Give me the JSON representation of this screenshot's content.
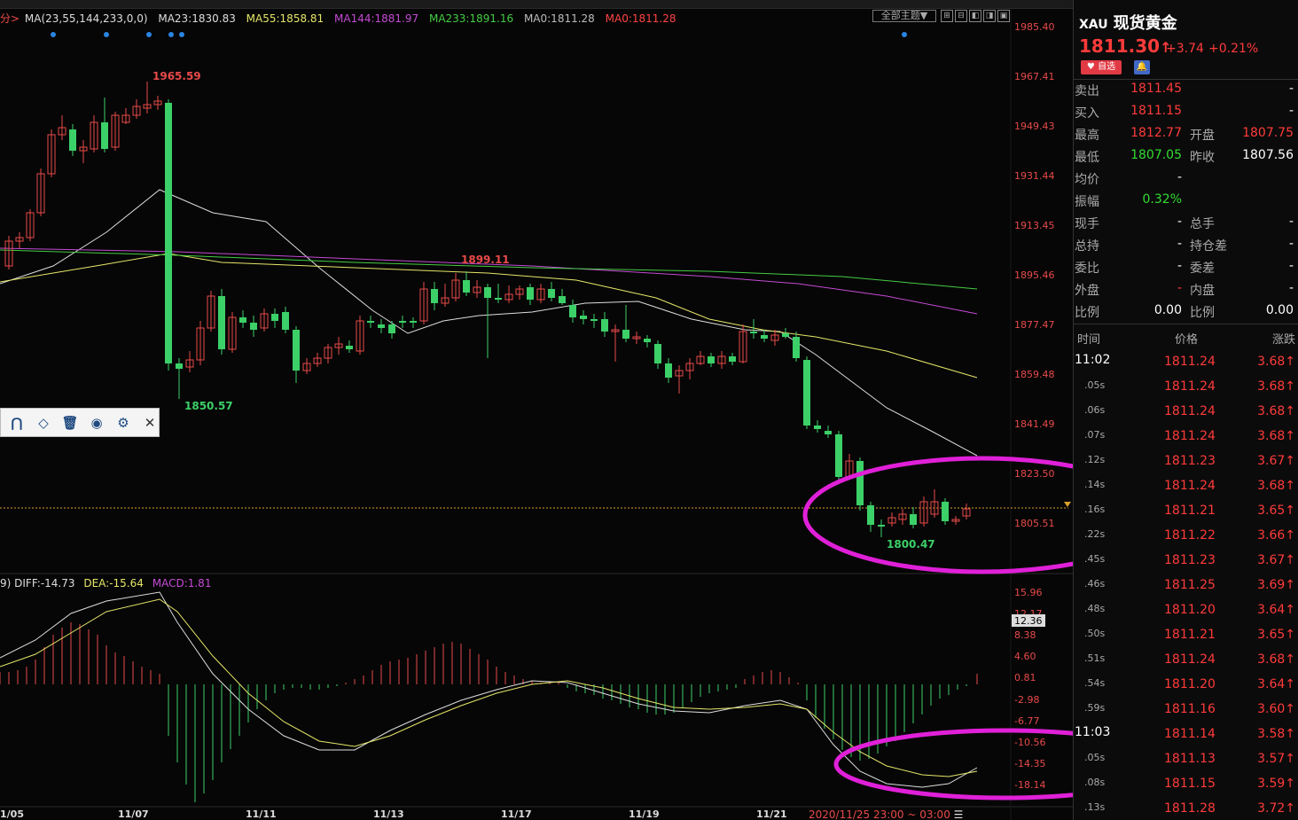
{
  "toolbar": {
    "theme_label": "全部主题▼",
    "icons": [
      "layout-1",
      "layout-2",
      "layout-3",
      "layout-4",
      "maximize"
    ]
  },
  "ma_legend": {
    "prefix": "分>",
    "items": [
      {
        "text": "MA(23,55,144,233,0,0)",
        "color": "#dddddd"
      },
      {
        "text": "MA23:1830.83",
        "color": "#dddddd"
      },
      {
        "text": "MA55:1858.81",
        "color": "#e6e66a"
      },
      {
        "text": "MA144:1881.97",
        "color": "#c44ad4"
      },
      {
        "text": "MA233:1891.16",
        "color": "#44cc44"
      },
      {
        "text": "MA0:1811.28",
        "color": "#bbbbbb"
      },
      {
        "text": "MA0:1811.28",
        "color": "#ff4444"
      }
    ]
  },
  "price_axis": [
    "1985.40",
    "1967.41",
    "1949.43",
    "1931.44",
    "1913.45",
    "1895.46",
    "1877.47",
    "1859.48",
    "1841.49",
    "1823.50",
    "1805.51"
  ],
  "annotations": {
    "high": "1965.59",
    "low1": "1850.57",
    "mid": "1899.11",
    "low2": "1800.47"
  },
  "macd_legend": [
    {
      "text": "9) DIFF:-14.73",
      "color": "#dddddd"
    },
    {
      "text": "DEA:-15.64",
      "color": "#e6e66a"
    },
    {
      "text": "MACD:1.81",
      "color": "#c44ad4"
    }
  ],
  "macd_axis": [
    "15.96",
    "12.17",
    "8.38",
    "4.60",
    "0.81",
    "-2.98",
    "-6.77",
    "-10.56",
    "-14.35",
    "-18.14"
  ],
  "macd_current": "12.36",
  "date_axis": [
    "1/05",
    "11/07",
    "11/11",
    "11/13",
    "11/17",
    "11/19",
    "11/21"
  ],
  "range_text": "2020/11/25 23:00 ~ 03:00",
  "range_menu": "☰",
  "toolbox_icons": [
    "magnet-icon",
    "eraser-icon",
    "trash-icon",
    "eye-icon",
    "gear-icon",
    "close-icon"
  ],
  "quote": {
    "code": "XAU",
    "name": "现货黄金",
    "price": "1811.30",
    "arrow": "↑",
    "change": "+3.74",
    "pct": "+0.21%",
    "fav": "♥ 自选",
    "bell": "🔔",
    "rows": [
      {
        "l1": "卖出",
        "v1": "1811.45",
        "l2": "",
        "v2": "-"
      },
      {
        "l1": "买入",
        "v1": "1811.15",
        "l2": "",
        "v2": "-"
      },
      {
        "l1": "最高",
        "v1": "1812.77",
        "l2": "开盘",
        "v2": "1807.75"
      },
      {
        "l1": "最低",
        "v1": "1807.05",
        "l2": "昨收",
        "v2": "1807.56"
      },
      {
        "l1": "均价",
        "v1": "-",
        "l2": "",
        "v2": ""
      },
      {
        "l1": "振幅",
        "v1": "0.32%",
        "l2": "",
        "v2": ""
      },
      {
        "l1": "现手",
        "v1": "-",
        "l2": "总手",
        "v2": "-"
      },
      {
        "l1": "总持",
        "v1": "-",
        "l2": "持仓差",
        "v2": "-"
      },
      {
        "l1": "委比",
        "v1": "-",
        "l2": "委差",
        "v2": "-"
      },
      {
        "l1": "外盘",
        "v1": "-",
        "l2": "内盘",
        "v2": "-"
      },
      {
        "l1": "比例",
        "v1": "0.00",
        "l2": "比例",
        "v2": "0.00"
      }
    ],
    "colors": {
      "v1": [
        "#ff3b3b",
        "#ff3b3b",
        "#ff3b3b",
        "#33dd33",
        "#ffffff",
        "#33dd33",
        "#ffffff",
        "#ffffff",
        "#ffffff",
        "#ff3b3b",
        "#ffffff"
      ],
      "v2": [
        "#ffffff",
        "#ffffff",
        "#ff3b3b",
        "#ffffff",
        "#ffffff",
        "#ffffff",
        "#ffffff",
        "#ffffff",
        "#ffffff",
        "#ffffff",
        "#ffffff"
      ]
    }
  },
  "ticks_header": {
    "time": "时间",
    "price": "价格",
    "chg": "涨跌"
  },
  "ticks": [
    {
      "t": "11:02",
      "p": "1811.24",
      "c": "3.68↑"
    },
    {
      "t": ".05s",
      "p": "1811.24",
      "c": "3.68↑"
    },
    {
      "t": ".06s",
      "p": "1811.24",
      "c": "3.68↑"
    },
    {
      "t": ".07s",
      "p": "1811.24",
      "c": "3.68↑"
    },
    {
      "t": ".12s",
      "p": "1811.23",
      "c": "3.67↑"
    },
    {
      "t": ".14s",
      "p": "1811.24",
      "c": "3.68↑"
    },
    {
      "t": ".16s",
      "p": "1811.21",
      "c": "3.65↑"
    },
    {
      "t": ".22s",
      "p": "1811.22",
      "c": "3.66↑"
    },
    {
      "t": ".45s",
      "p": "1811.23",
      "c": "3.67↑"
    },
    {
      "t": ".46s",
      "p": "1811.25",
      "c": "3.69↑"
    },
    {
      "t": ".48s",
      "p": "1811.20",
      "c": "3.64↑"
    },
    {
      "t": ".50s",
      "p": "1811.21",
      "c": "3.65↑"
    },
    {
      "t": ".51s",
      "p": "1811.24",
      "c": "3.68↑"
    },
    {
      "t": ".54s",
      "p": "1811.20",
      "c": "3.64↑"
    },
    {
      "t": ".59s",
      "p": "1811.16",
      "c": "3.60↑"
    },
    {
      "t": "11:03",
      "p": "1811.14",
      "c": "3.58↑"
    },
    {
      "t": ".05s",
      "p": "1811.13",
      "c": "3.57↑"
    },
    {
      "t": ".08s",
      "p": "1811.15",
      "c": "3.59↑"
    },
    {
      "t": ".13s",
      "p": "1811.28",
      "c": "3.72↑"
    }
  ]
}
